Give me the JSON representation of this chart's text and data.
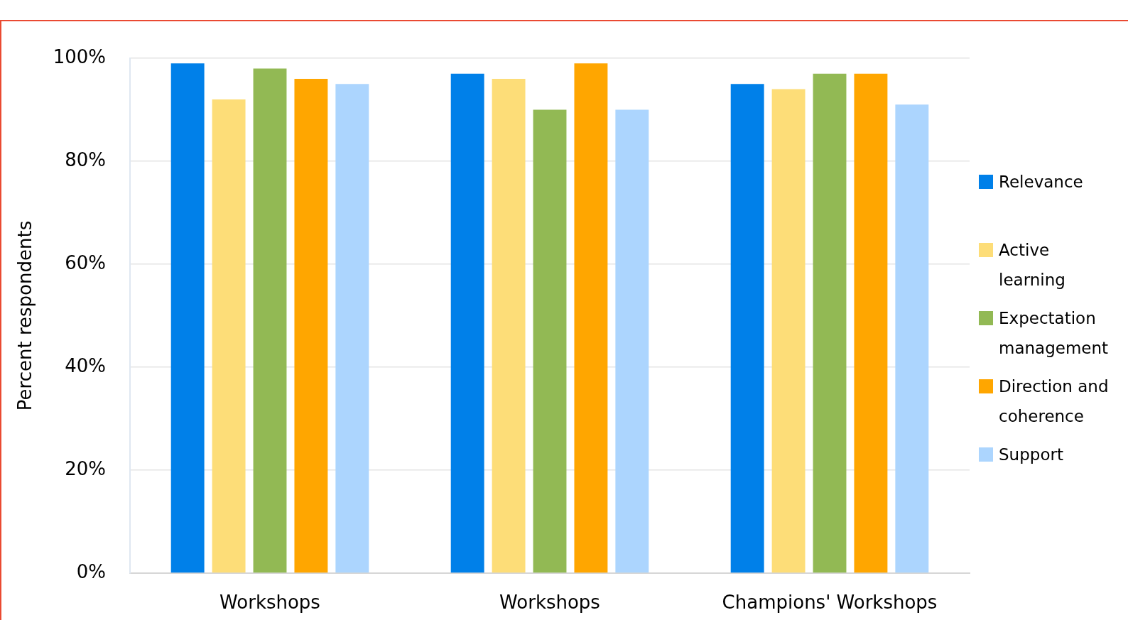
{
  "chart_data": {
    "type": "bar",
    "ylabel": "Percent respondents",
    "categories": [
      "Workshops",
      "Workshops",
      "Champions' Workshops"
    ],
    "series": [
      {
        "name": "Relevance",
        "color": "#0080e9",
        "values": [
          99,
          97,
          95
        ]
      },
      {
        "name": "Active learning",
        "color": "#fddd78",
        "values": [
          92,
          96,
          94
        ]
      },
      {
        "name": "Expectation management",
        "color": "#92b954",
        "values": [
          98,
          90,
          97
        ]
      },
      {
        "name": "Direction and coherence",
        "color": "#ffa600",
        "values": [
          96,
          99,
          97
        ]
      },
      {
        "name": "Support",
        "color": "#acd5fe",
        "values": [
          95,
          90,
          91
        ]
      }
    ],
    "ylim": [
      0,
      100
    ],
    "yticks": [
      {
        "value": 0,
        "label": "0%"
      },
      {
        "value": 20,
        "label": "20%"
      },
      {
        "value": 40,
        "label": "40%"
      },
      {
        "value": 60,
        "label": "60%"
      },
      {
        "value": 80,
        "label": "80%"
      },
      {
        "value": 100,
        "label": "100%"
      }
    ],
    "grid": "y",
    "legend": "right"
  }
}
